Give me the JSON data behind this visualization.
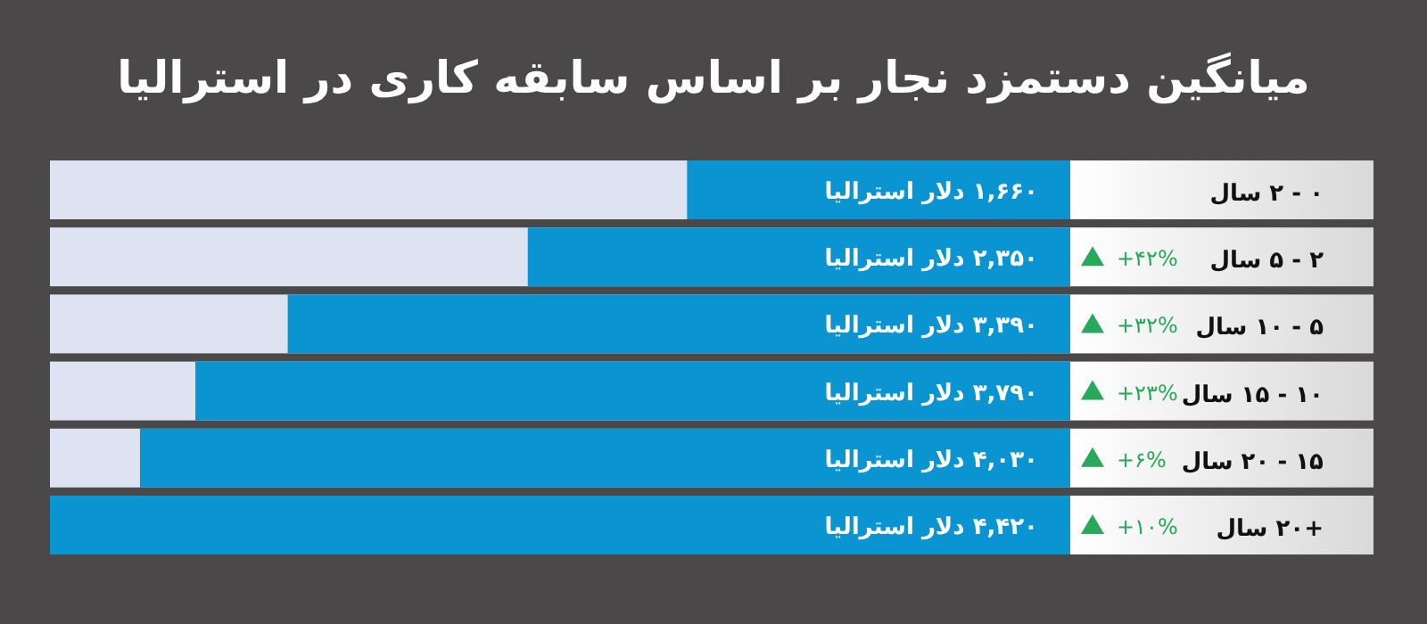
{
  "chart_data": {
    "type": "bar",
    "orientation": "horizontal",
    "title": "میانگین دستمزد نجار بر اساس سابقه کاری در استرالیا",
    "categories": [
      "۰ - ۲ سال",
      "۲ - ۵ سال",
      "۵ - ۱۰ سال",
      "۱۰ - ۱۵ سال",
      "۱۵ - ۲۰ سال",
      "+۲۰ سال"
    ],
    "series": [
      {
        "color": "#0a94d2",
        "values": [
          1660,
          2350,
          3390,
          3790,
          4030,
          4420
        ],
        "value_labels": [
          "۱,۶۶۰ دلار استرالیا",
          "۲,۳۵۰ دلار استرالیا",
          "۳,۳۹۰ دلار استرالیا",
          "۳,۷۹۰ دلار استرالیا",
          "۴,۰۳۰ دلار استرالیا",
          "۴,۴۲۰ دلار استرالیا"
        ]
      }
    ],
    "annotations": [
      "+۴۲%",
      "+۳۲%",
      "+۲۳%",
      "+۶%",
      "+۱۰%"
    ]
  }
}
